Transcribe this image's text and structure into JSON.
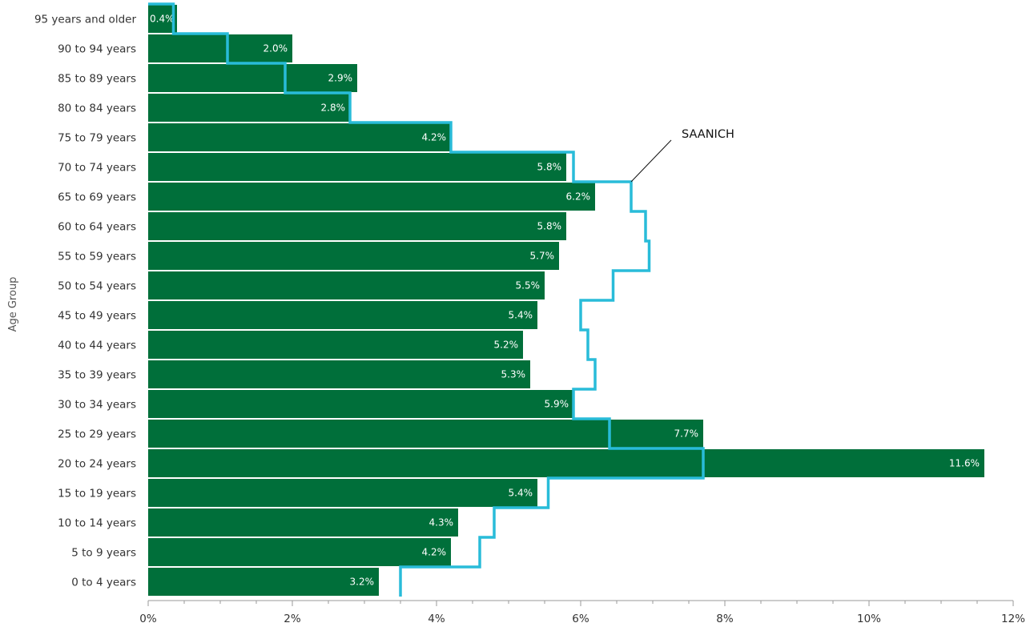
{
  "chart_data": {
    "type": "bar",
    "orientation": "horizontal",
    "title": "",
    "xlabel": "",
    "ylabel": "Age Group",
    "xlim": [
      0,
      12
    ],
    "x_ticks": [
      0,
      2,
      4,
      6,
      8,
      10,
      12
    ],
    "x_tick_labels": [
      "0%",
      "2%",
      "4%",
      "6%",
      "8%",
      "10%",
      "12%"
    ],
    "categories": [
      "95 years and older",
      "90 to 94 years",
      "85 to 89 years",
      "80 to 84 years",
      "75 to 79 years",
      "70 to 74 years",
      "65 to 69 years",
      "60 to 64 years",
      "55 to 59 years",
      "50 to 54 years",
      "45 to 49 years",
      "40 to 44 years",
      "35 to 39 years",
      "30 to 34 years",
      "25 to 29 years",
      "20 to 24 years",
      "15 to 19 years",
      "10 to 14 years",
      "5 to 9 years",
      "0 to 4 years"
    ],
    "series": [
      {
        "type": "bar",
        "color": "#006f3a",
        "values": [
          0.4,
          2.0,
          2.9,
          2.8,
          4.2,
          5.8,
          6.2,
          5.8,
          5.7,
          5.5,
          5.4,
          5.2,
          5.3,
          5.9,
          7.7,
          11.6,
          5.4,
          4.3,
          4.2,
          3.2
        ],
        "labels": [
          "0.4%",
          "2.0%",
          "2.9%",
          "2.8%",
          "4.2%",
          "5.8%",
          "6.2%",
          "5.8%",
          "5.7%",
          "5.5%",
          "5.4%",
          "5.2%",
          "5.3%",
          "5.9%",
          "7.7%",
          "11.6%",
          "5.4%",
          "4.3%",
          "4.2%",
          "3.2%"
        ]
      },
      {
        "type": "step",
        "name": "SAANICH",
        "color": "#29bcd9",
        "values": [
          0.35,
          1.1,
          1.9,
          2.8,
          4.2,
          5.9,
          6.7,
          6.9,
          6.95,
          6.45,
          6.0,
          6.1,
          6.2,
          5.9,
          6.4,
          7.7,
          5.55,
          4.8,
          4.6,
          3.5
        ]
      }
    ],
    "annotation": {
      "text": "SAANICH",
      "series": "SAANICH"
    },
    "grid": false
  }
}
